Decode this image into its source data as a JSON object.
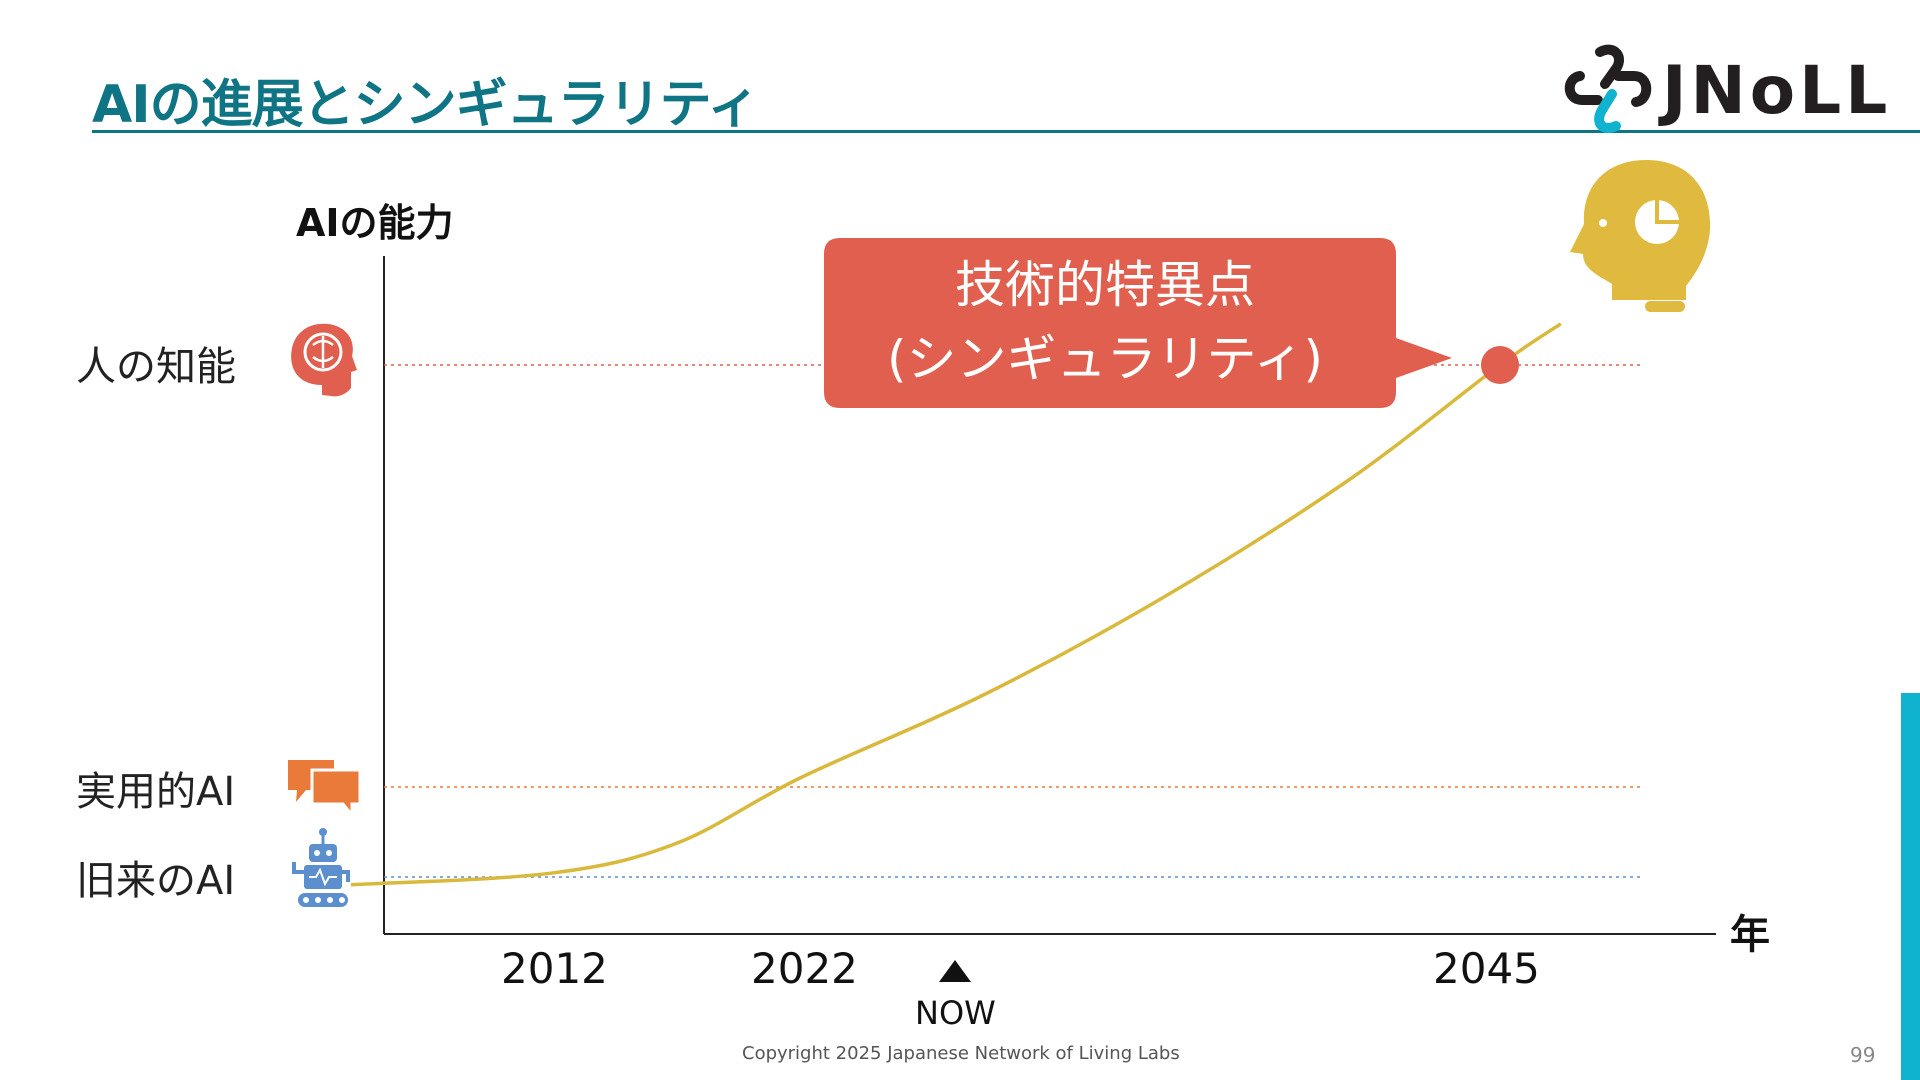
{
  "slide": {
    "title": "AIの進展とシンギュラリティ",
    "logo_text": "JNoLL",
    "copyright": "Copyright 2025  Japanese Network of Living Labs",
    "page_number": "99"
  },
  "callout": {
    "line1": "技術的特異点",
    "line2": "(シンギュラリティ)"
  },
  "now_marker": {
    "label": "NOW"
  },
  "chart_data": {
    "type": "line",
    "ylabel": "AIの能力",
    "xlabel": "年",
    "x_ticks": [
      "2012",
      "2022",
      "2045"
    ],
    "levels": [
      {
        "label": "人の知能",
        "icon": "human-brain-icon",
        "color": "#e05f4e"
      },
      {
        "label": "実用的AI",
        "icon": "chat-bubbles-icon",
        "color": "#ea7a3a"
      },
      {
        "label": "旧来のAI",
        "icon": "robot-icon",
        "color": "#5b8fce"
      }
    ],
    "series": [
      {
        "color": "#d9b93c",
        "x": [
          2004,
          2012,
          2017,
          2022,
          2028,
          2034,
          2040,
          2045,
          2047
        ],
        "y": [
          0.05,
          0.12,
          0.3,
          0.7,
          1.2,
          1.8,
          2.5,
          3.2,
          3.45
        ]
      }
    ],
    "highlight_point": {
      "x": 2045,
      "y": 3.2,
      "color": "#e05f4e",
      "label": "技術的特異点"
    },
    "colors": {
      "accent": "#0f7584",
      "callout": "#e05f4e",
      "curve": "#d9b93c",
      "side_bar": "#10b3cf"
    }
  }
}
